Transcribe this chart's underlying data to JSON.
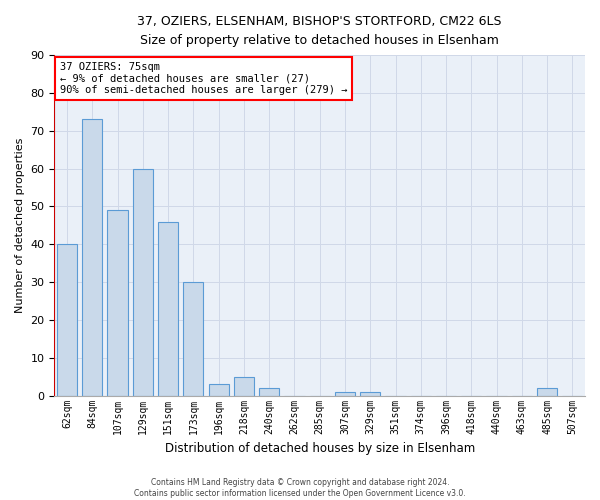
{
  "title_line1": "37, OZIERS, ELSENHAM, BISHOP'S STORTFORD, CM22 6LS",
  "title_line2": "Size of property relative to detached houses in Elsenham",
  "xlabel": "Distribution of detached houses by size in Elsenham",
  "ylabel": "Number of detached properties",
  "categories": [
    "62sqm",
    "84sqm",
    "107sqm",
    "129sqm",
    "151sqm",
    "173sqm",
    "196sqm",
    "218sqm",
    "240sqm",
    "262sqm",
    "285sqm",
    "307sqm",
    "329sqm",
    "351sqm",
    "374sqm",
    "396sqm",
    "418sqm",
    "440sqm",
    "463sqm",
    "485sqm",
    "507sqm"
  ],
  "values": [
    40,
    73,
    49,
    60,
    46,
    30,
    3,
    5,
    2,
    0,
    0,
    1,
    1,
    0,
    0,
    0,
    0,
    0,
    0,
    2,
    0
  ],
  "bar_color": "#c9d9ea",
  "bar_edge_color": "#5b9bd5",
  "grid_color": "#d0d8e8",
  "background_color": "#eaf0f8",
  "annotation_text": "37 OZIERS: 75sqm\n← 9% of detached houses are smaller (27)\n90% of semi-detached houses are larger (279) →",
  "vline_color": "#cc0000",
  "footnote": "Contains HM Land Registry data © Crown copyright and database right 2024.\nContains public sector information licensed under the Open Government Licence v3.0.",
  "ylim": [
    0,
    90
  ],
  "yticks": [
    0,
    10,
    20,
    30,
    40,
    50,
    60,
    70,
    80,
    90
  ]
}
